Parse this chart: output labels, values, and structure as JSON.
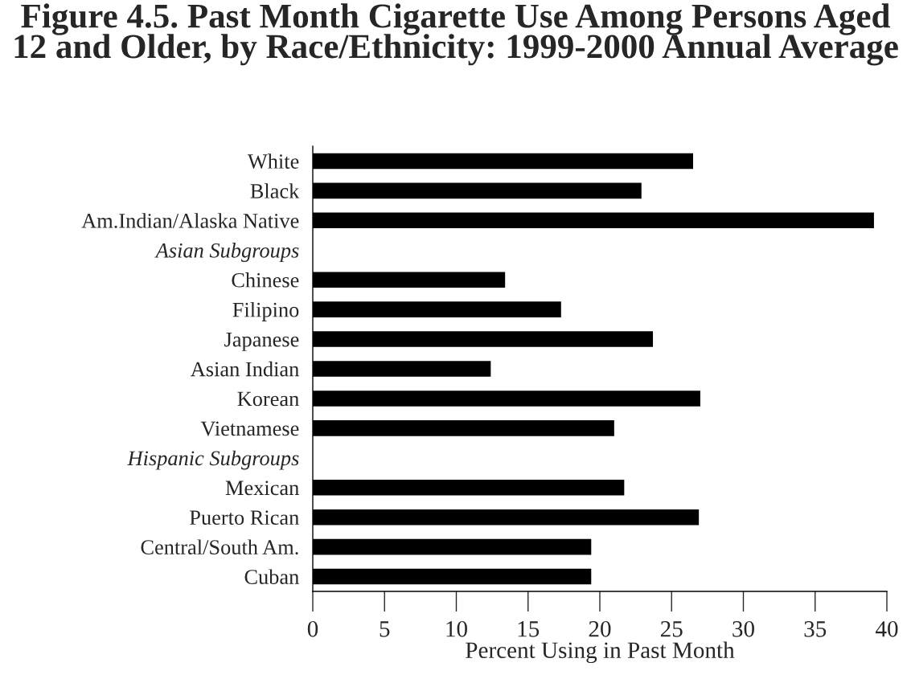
{
  "chart_data": {
    "type": "bar",
    "orientation": "horizontal",
    "title": "Figure 4.5. Past Month Cigarette Use Among Persons Aged 12 and Older, by Race/Ethnicity: 1999-2000 Annual Average",
    "xlabel": "Percent Using in Past Month",
    "categories": [
      "White",
      "Black",
      "Am.Indian/Alaska Native",
      "Asian Subgroups",
      "Chinese",
      "Filipino",
      "Japanese",
      "Asian Indian",
      "Korean",
      "Vietnamese",
      "Hispanic Subgroups",
      "Mexican",
      "Puerto Rican",
      "Central/South Am.",
      "Cuban"
    ],
    "values": [
      26.5,
      22.9,
      39.1,
      null,
      13.4,
      17.3,
      23.7,
      12.4,
      27.0,
      21.0,
      null,
      21.7,
      26.9,
      19.4,
      19.4
    ],
    "color": "#000000",
    "xlim": [
      0,
      40
    ],
    "xticks": [
      0,
      5,
      10,
      15,
      20,
      25,
      30,
      35,
      40
    ],
    "grid": false,
    "legend": false
  }
}
